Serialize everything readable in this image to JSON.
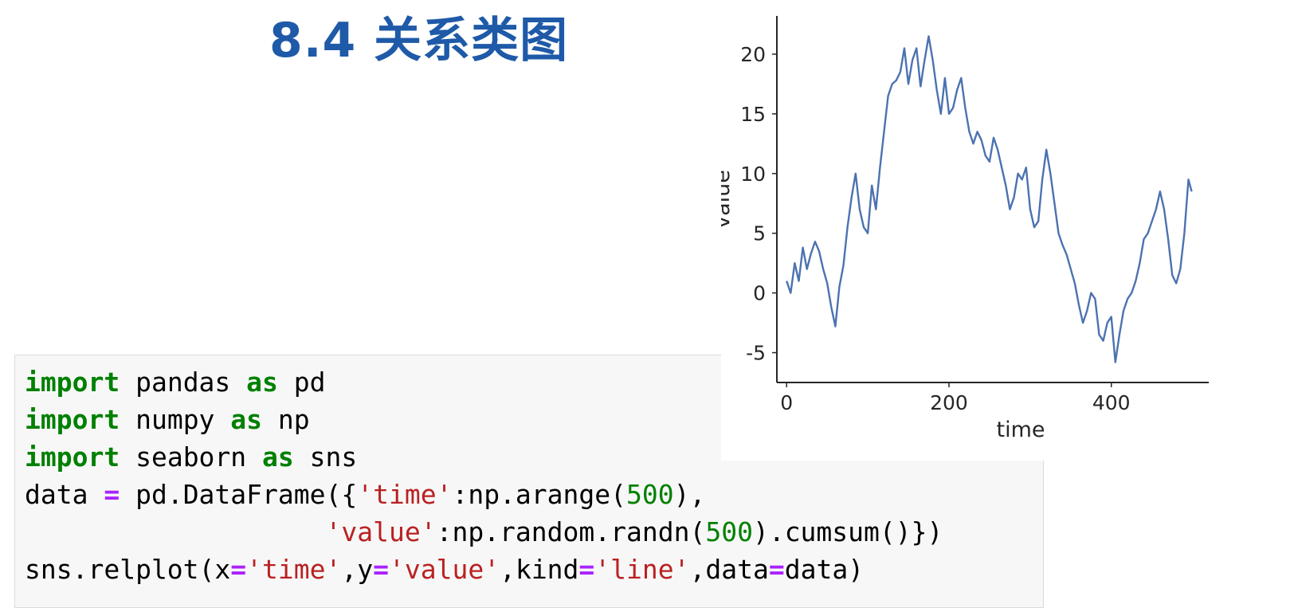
{
  "slide": {
    "title": "8.4 关系类图"
  },
  "code": {
    "line1": {
      "kw1": "import",
      "mid": " pandas ",
      "kw2": "as",
      "tail": " pd"
    },
    "line2": {
      "kw1": "import",
      "mid": " numpy ",
      "kw2": "as",
      "tail": " np"
    },
    "line3": {
      "kw1": "import",
      "mid": " seaborn ",
      "kw2": "as",
      "tail": " sns"
    },
    "line4": {
      "a": "data ",
      "eq": "=",
      "b": " pd.DataFrame({",
      "s1": "'time'",
      "c": ":np.arange(",
      "n1": "500",
      "d": "),"
    },
    "line5": {
      "indent": "                   ",
      "s1": "'value'",
      "c": ":np.random.randn(",
      "n1": "500",
      "d": ").cumsum()})"
    },
    "line6": {
      "a": "sns.relplot(x",
      "eq1": "=",
      "s1": "'time'",
      "b": ",y",
      "eq2": "=",
      "s2": "'value'",
      "c": ",kind",
      "eq3": "=",
      "s3": "'line'",
      "d": ",data",
      "eq4": "=",
      "e": "data)"
    }
  },
  "chart_data": {
    "type": "line",
    "xlabel": "time",
    "ylabel": "value",
    "xlim": [
      -12,
      520
    ],
    "ylim": [
      -7.5,
      23.2
    ],
    "xticks": [
      0,
      200,
      400
    ],
    "xtick_labels": [
      "0",
      "200",
      "400"
    ],
    "yticks": [
      -5,
      0,
      5,
      10,
      15,
      20
    ],
    "ytick_labels": [
      "-5",
      "0",
      "5",
      "10",
      "15",
      "20"
    ],
    "grid": false,
    "line_color": "#4c72b0",
    "x": [
      0,
      5,
      10,
      15,
      20,
      25,
      30,
      35,
      40,
      45,
      50,
      55,
      60,
      65,
      70,
      75,
      80,
      85,
      90,
      95,
      100,
      105,
      110,
      115,
      120,
      125,
      130,
      135,
      140,
      145,
      150,
      155,
      160,
      165,
      170,
      175,
      180,
      185,
      190,
      195,
      200,
      205,
      210,
      215,
      220,
      225,
      230,
      235,
      240,
      245,
      250,
      255,
      260,
      265,
      270,
      275,
      280,
      285,
      290,
      295,
      300,
      305,
      310,
      315,
      320,
      325,
      330,
      335,
      340,
      345,
      350,
      355,
      360,
      365,
      370,
      375,
      380,
      385,
      390,
      395,
      400,
      405,
      410,
      415,
      420,
      425,
      430,
      435,
      440,
      445,
      450,
      455,
      460,
      465,
      470,
      475,
      480,
      485,
      490,
      495,
      499
    ],
    "y": [
      1,
      0,
      2.5,
      1,
      3.8,
      2,
      3.3,
      4.3,
      3.5,
      2,
      0.8,
      -1.2,
      -2.8,
      0.5,
      2.3,
      5.5,
      8,
      10,
      7,
      5.5,
      5,
      9,
      7,
      10.5,
      13.5,
      16.5,
      17.5,
      17.8,
      18.5,
      20.5,
      17.5,
      19.5,
      20.5,
      17.3,
      19.5,
      21.5,
      19.5,
      17,
      15,
      18,
      15,
      15.5,
      17,
      18,
      15.5,
      13.5,
      12.5,
      13.5,
      12.8,
      11.5,
      11,
      13,
      12,
      10.5,
      9,
      7,
      8,
      10,
      9.5,
      10.5,
      7,
      5.5,
      6,
      9.5,
      12,
      10,
      7.5,
      5,
      4,
      3.2,
      2,
      0.8,
      -1,
      -2.5,
      -1.5,
      0,
      -0.5,
      -3.5,
      -4,
      -2.5,
      -2,
      -5.8,
      -3.5,
      -1.5,
      -0.5,
      0,
      1,
      2.5,
      4.5,
      5,
      6,
      7,
      8.5,
      7,
      4.5,
      1.5,
      0.8,
      2,
      5,
      9.5,
      8.5
    ]
  }
}
